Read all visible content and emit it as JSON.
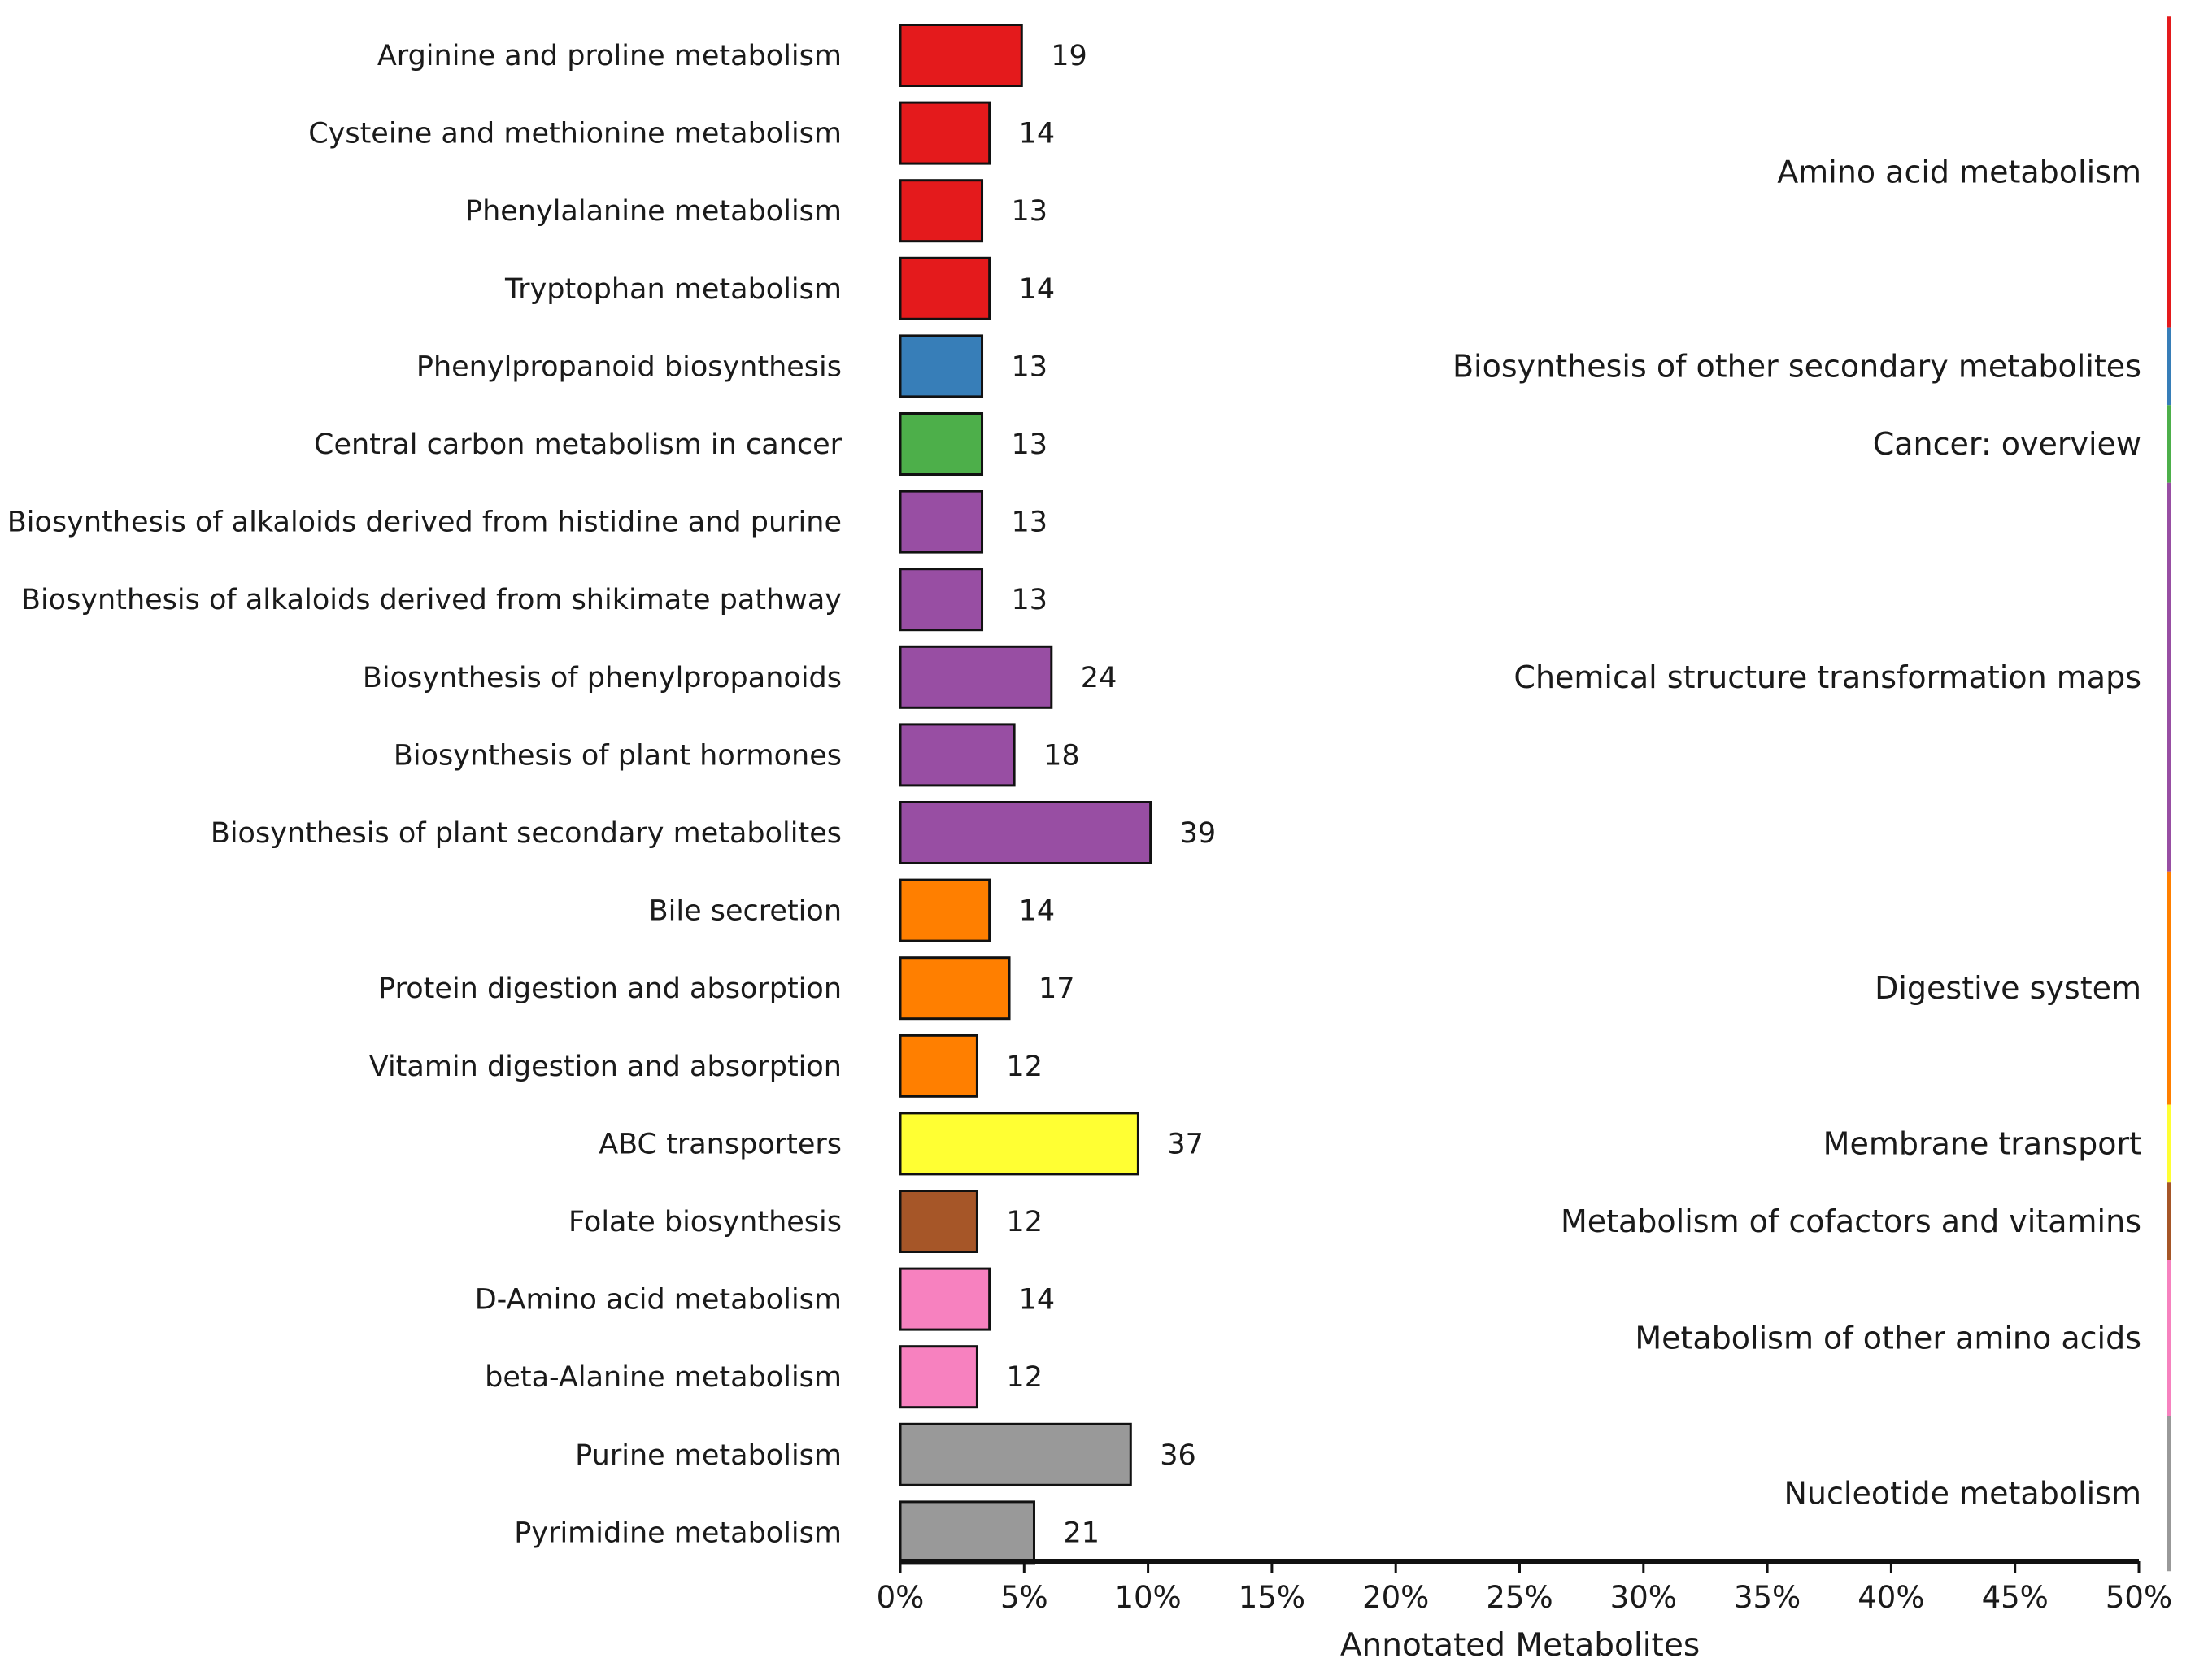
{
  "chart_data": {
    "type": "bar",
    "orientation": "horizontal",
    "title": "",
    "xlabel": "Annotated Metabolites",
    "ylabel": "",
    "xlim": [
      0,
      50
    ],
    "x_ticks": [
      0,
      5,
      10,
      15,
      20,
      25,
      30,
      35,
      40,
      45,
      50
    ],
    "x_tick_labels": [
      "0%",
      "5%",
      "10%",
      "15%",
      "20%",
      "25%",
      "30%",
      "35%",
      "40%",
      "45%",
      "50%"
    ],
    "grid": false,
    "categories": [
      "Arginine and proline metabolism",
      "Cysteine and methionine metabolism",
      "Phenylalanine metabolism",
      "Tryptophan metabolism",
      "Phenylpropanoid biosynthesis",
      "Central carbon metabolism in cancer",
      "Biosynthesis of alkaloids derived from histidine and purine",
      "Biosynthesis of alkaloids derived from shikimate pathway",
      "Biosynthesis of phenylpropanoids",
      "Biosynthesis of plant hormones",
      "Biosynthesis of plant secondary metabolites",
      "Bile secretion",
      "Protein digestion and absorption",
      "Vitamin digestion and absorption",
      "ABC transporters",
      "Folate biosynthesis",
      "D-Amino acid metabolism",
      "beta-Alanine metabolism",
      "Purine metabolism",
      "Pyrimidine metabolism"
    ],
    "counts": [
      19,
      14,
      13,
      14,
      13,
      13,
      13,
      13,
      24,
      18,
      39,
      14,
      17,
      12,
      37,
      12,
      14,
      12,
      36,
      21
    ],
    "percent_values": [
      4.9,
      3.6,
      3.3,
      3.6,
      3.3,
      3.3,
      3.3,
      3.3,
      6.1,
      4.6,
      10.1,
      3.6,
      4.4,
      3.1,
      9.6,
      3.1,
      3.6,
      3.1,
      9.3,
      5.4
    ],
    "groups": [
      {
        "name": "Amino acid metabolism",
        "start": 0,
        "end": 3,
        "color": "#e41a1c"
      },
      {
        "name": "Biosynthesis of other secondary metabolites",
        "start": 4,
        "end": 4,
        "color": "#377eb8"
      },
      {
        "name": "Cancer: overview",
        "start": 5,
        "end": 5,
        "color": "#4daf4a"
      },
      {
        "name": "Chemical structure transformation maps",
        "start": 6,
        "end": 10,
        "color": "#984ea3"
      },
      {
        "name": "Digestive system",
        "start": 11,
        "end": 13,
        "color": "#ff7f00"
      },
      {
        "name": "Membrane transport",
        "start": 14,
        "end": 14,
        "color": "#ffff33"
      },
      {
        "name": "Metabolism of cofactors and vitamins",
        "start": 15,
        "end": 15,
        "color": "#a65628"
      },
      {
        "name": "Metabolism of other amino acids",
        "start": 16,
        "end": 17,
        "color": "#f781bf"
      },
      {
        "name": "Nucleotide metabolism",
        "start": 18,
        "end": 19,
        "color": "#999999"
      }
    ]
  }
}
